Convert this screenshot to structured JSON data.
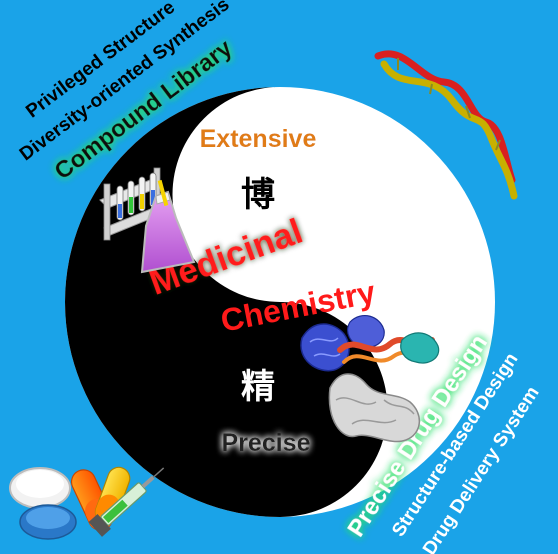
{
  "colors": {
    "background": "#1aa3e8",
    "yin": "#000000",
    "yang": "#ffffff",
    "red_text": "#ff1a1a",
    "orange_text": "#e07b12",
    "green_glow": "#2ee06a"
  },
  "top_left": {
    "line1": "Privileged Structure",
    "line2": "Diversity-oriented Synthesis",
    "line3": "Compound Library"
  },
  "bottom_right": {
    "line1": "Precise Drug Design",
    "line2": "Structure-based Design",
    "line3": "Drug Delivery System"
  },
  "center": {
    "word1": "Medicinal",
    "word2": "Chemistry"
  },
  "labels": {
    "extensive": "Extensive",
    "precise": "Precise",
    "char_top": "博",
    "char_bottom": "精"
  },
  "icons": [
    "dna-helix-icon",
    "test-tube-rack-icon",
    "flask-icon",
    "protein-dna-structure-icon",
    "pills-icon",
    "syringe-icon"
  ]
}
